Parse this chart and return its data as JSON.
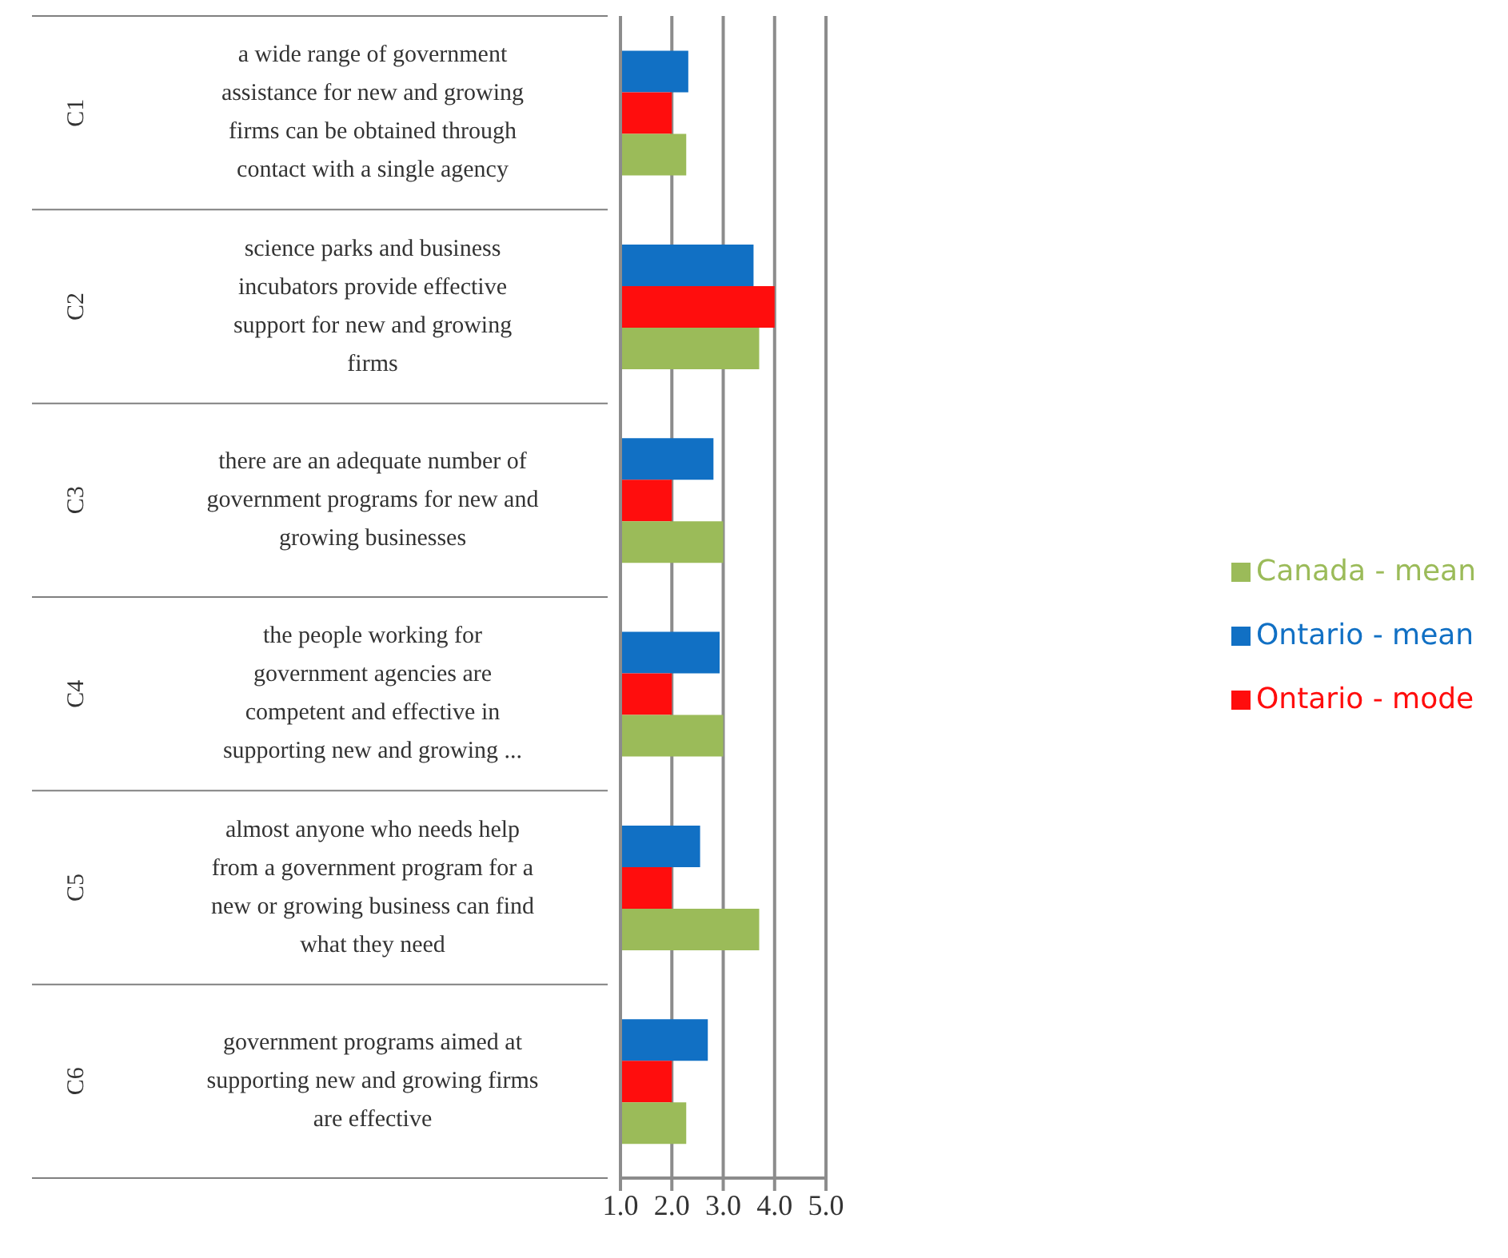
{
  "chart_data": {
    "type": "bar",
    "orientation": "horizontal",
    "categories": [
      "a wide range of government assistance for new and growing firms can be obtained through contact with a single agency",
      "science parks and business incubators provide effective support for new and growing firms",
      "there are an adequate number of government programs for new and growing businesses",
      "the people working for government agencies are competent and effective in supporting new and growing ...",
      "almost anyone who needs help from a government program for a new or growing business can find what they need",
      "government programs aimed at supporting new and growing firms are effective"
    ],
    "annotations": [
      "C1",
      "C2",
      "C3",
      "C4",
      "C5",
      "C6"
    ],
    "series": [
      {
        "name": "Ontario - mean",
        "color": "#1170c4",
        "values": [
          2.32,
          3.59,
          2.81,
          2.93,
          2.55,
          2.7
        ]
      },
      {
        "name": "Ontario - mode",
        "color": "#ff0d0d",
        "values": [
          2,
          4,
          2,
          2,
          2,
          2
        ]
      },
      {
        "name": "Canada - mean",
        "color": "#9bbb59",
        "values": [
          2.28,
          3.7,
          3,
          3,
          3.7,
          2.28
        ]
      }
    ],
    "xlim": [
      1,
      5
    ],
    "xticks": [
      {
        "value": 1,
        "label": "1.0"
      },
      {
        "value": 2,
        "label": "2.0"
      },
      {
        "value": 3,
        "label": "3.0"
      },
      {
        "value": 4,
        "label": "4.0"
      },
      {
        "value": 5,
        "label": "5.0"
      }
    ],
    "grid": "x",
    "legend": "right"
  }
}
